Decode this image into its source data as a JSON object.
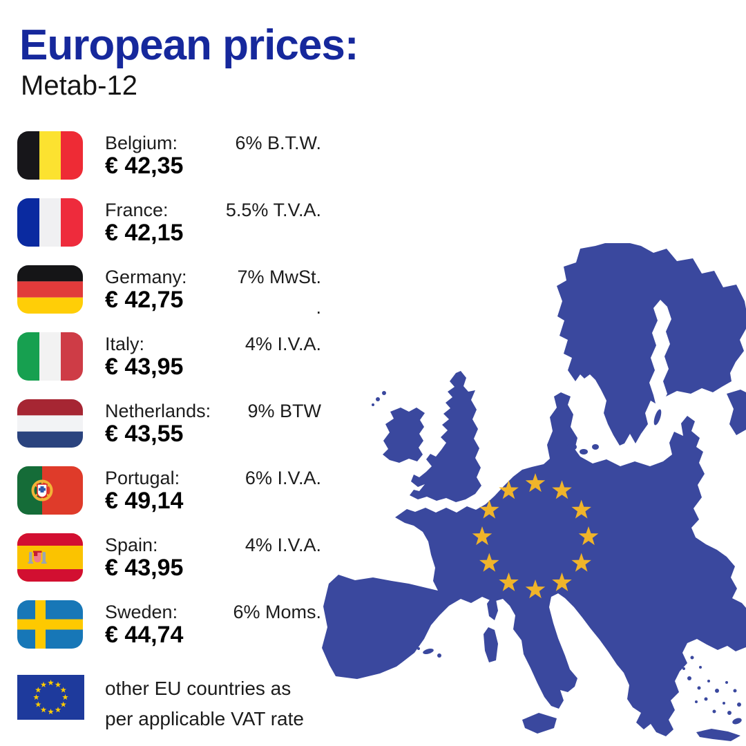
{
  "title": "European prices:",
  "subtitle": "Metab-12",
  "countries": [
    {
      "name": "Belgium:",
      "price": "€ 42,35",
      "vat": "6% B.T.W.",
      "flag": "belgium"
    },
    {
      "name": "France:",
      "price": "€ 42,15",
      "vat": "5.5% T.V.A.",
      "flag": "france"
    },
    {
      "name": "Germany:",
      "price": "€ 42,75",
      "vat": "7% MwSt.",
      "vat_line2": ".",
      "flag": "germany"
    },
    {
      "name": "Italy:",
      "price": "€ 43,95",
      "vat": "4% I.V.A.",
      "flag": "italy"
    },
    {
      "name": "Netherlands:",
      "price": "€ 43,55",
      "vat": "9% BTW",
      "flag": "netherlands"
    },
    {
      "name": "Portugal:",
      "price": "€ 49,14",
      "vat": "6% I.V.A.",
      "flag": "portugal"
    },
    {
      "name": "Spain:",
      "price": "€ 43,95",
      "vat": "4% I.V.A.",
      "flag": "spain"
    },
    {
      "name": "Sweden:",
      "price": "€ 44,74",
      "vat": "6% Moms.",
      "flag": "sweden"
    }
  ],
  "footer": {
    "line1": "other EU countries as",
    "line2": "per applicable VAT rate"
  },
  "map": {
    "description": "silhouette map of Europe with circle of 12 EU stars over central Europe",
    "star_count": 12
  },
  "colors": {
    "title_blue": "#16289C",
    "map_blue": "#3A489E",
    "star_gold": "#F0B42A",
    "eu_flag_blue": "#1E3A9C",
    "eu_star_gold": "#FFCC00"
  }
}
